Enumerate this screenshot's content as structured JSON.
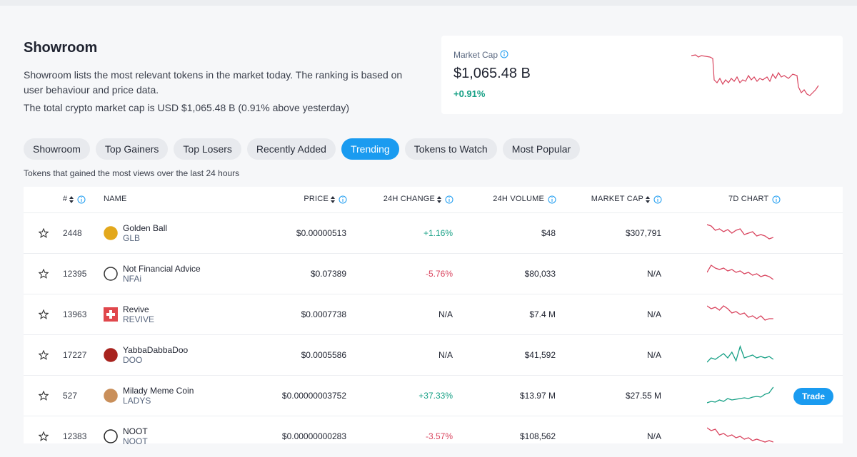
{
  "header": {
    "title": "Showroom",
    "description": "Showroom lists the most relevant tokens in the market today. The ranking is based on user behaviour and price data.",
    "market_cap_note": "The total crypto market cap is USD $1,065.48 B (0.91% above yesterday)"
  },
  "market_cap_card": {
    "label": "Market Cap",
    "value": "$1,065.48 B",
    "change": "+0.91%"
  },
  "tabs": [
    {
      "label": "Showroom"
    },
    {
      "label": "Top Gainers"
    },
    {
      "label": "Top Losers"
    },
    {
      "label": "Recently Added"
    },
    {
      "label": "Trending",
      "active": true
    },
    {
      "label": "Tokens to Watch"
    },
    {
      "label": "Most Popular"
    }
  ],
  "table": {
    "caption": "Tokens that gained the most views over the last 24 hours",
    "columns": [
      "#",
      "NAME",
      "PRICE",
      "24H CHANGE",
      "24H VOLUME",
      "MARKET CAP",
      "7D CHART"
    ],
    "rows": [
      {
        "rank": "2448",
        "name": "Golden Ball",
        "symbol": "GLB",
        "price": "$0.00000513",
        "change": "+1.16%",
        "volume": "$48",
        "market_cap": "$307,791"
      },
      {
        "rank": "12395",
        "name": "Not Financial Advice",
        "symbol": "NFAi",
        "price": "$0.07389",
        "change": "-5.76%",
        "volume": "$80,033",
        "market_cap": "N/A"
      },
      {
        "rank": "13963",
        "name": "Revive",
        "symbol": "REVIVE",
        "price": "$0.0007738",
        "change": "N/A",
        "volume": "$7.4 M",
        "market_cap": "N/A"
      },
      {
        "rank": "17227",
        "name": "YabbaDabbaDoo",
        "symbol": "DOO",
        "price": "$0.0005586",
        "change": "N/A",
        "volume": "$41,592",
        "market_cap": "N/A"
      },
      {
        "rank": "527",
        "name": "Milady Meme Coin",
        "symbol": "LADYS",
        "price": "$0.00000003752",
        "change": "+37.33%",
        "volume": "$13.97 M",
        "market_cap": "$27.55 M",
        "action": "Trade"
      },
      {
        "rank": "12383",
        "name": "NOOT",
        "symbol": "NOOT",
        "price": "$0.00000000283",
        "change": "-3.57%",
        "volume": "$108,562",
        "market_cap": "N/A"
      }
    ]
  }
}
